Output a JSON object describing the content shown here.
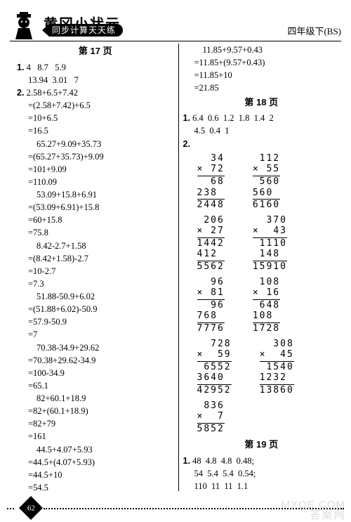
{
  "header": {
    "brand": "黄冈小状元",
    "subtitle": "同步计算天天练",
    "grade": "四年级下(BS)"
  },
  "footer": {
    "page_number": "62"
  },
  "watermark": {
    "en": "MXQE.COM",
    "cn": "答案网"
  },
  "left": {
    "page_label": "第 17 页",
    "q1_label": "1.",
    "q1_line1": "4   8.7   5.9",
    "q1_line2": "13.94  3.01   7",
    "q2_label": "2.",
    "blocks": [
      {
        "head": "2.58+6.5+7.42",
        "lines": [
          "=(2.58+7.42)+6.5",
          "=10+6.5",
          "=16.5"
        ]
      },
      {
        "head": "65.27+9.09+35.73",
        "lines": [
          "=(65.27+35.73)+9.09",
          "=101+9.09",
          "=110.09"
        ]
      },
      {
        "head": "53.09+15.8+6.91",
        "lines": [
          "=(53.09+6.91)+15.8",
          "=60+15.8",
          "=75.8"
        ]
      },
      {
        "head": "8.42-2.7+1.58",
        "lines": [
          "=(8.42+1.58)-2.7",
          "=10-2.7",
          "=7.3"
        ]
      },
      {
        "head": "51.88-50.9+6.02",
        "lines": [
          "=(51.88+6.02)-50.9",
          "=57.9-50.9",
          "=7"
        ]
      },
      {
        "head": "70.38-34.9+29.62",
        "lines": [
          "=70.38+29.62-34.9",
          "=100-34.9",
          "=65.1"
        ]
      },
      {
        "head": "82+60.1+18.9",
        "lines": [
          "=82+(60.1+18.9)",
          "=82+79",
          "=161"
        ]
      },
      {
        "head": "44.5+4.07+5.93",
        "lines": [
          "=44.5+(4.07+5.93)",
          "=44.5+10",
          "=54.5"
        ]
      }
    ]
  },
  "right": {
    "top_block": {
      "head": "11.85+9.57+0.43",
      "lines": [
        "=11.85+(9.57+0.43)",
        "=11.85+10",
        "=21.85"
      ]
    },
    "p18": {
      "label": "第 18 页",
      "q1_label": "1.",
      "q1_line1": "6.4  0.6  1.2  1.8  1.4  2",
      "q1_line2": "4.5  0.4  1",
      "q2_label": "2."
    },
    "mults": [
      {
        "a": "34",
        "b": "72",
        "p1": "68",
        "p2": "238",
        "r": "2448"
      },
      {
        "a": "112",
        "b": "55",
        "p1": "560",
        "p2": "560",
        "r": "6160"
      },
      {
        "a": "206",
        "b": "27",
        "p1": "1442",
        "p2": "412",
        "r": "5562"
      },
      {
        "a": "370",
        "b": "43",
        "p1": "1110",
        "p2": "148",
        "r": "15910"
      },
      {
        "a": "96",
        "b": "81",
        "p1": "96",
        "p2": "768",
        "r": "7776"
      },
      {
        "a": "108",
        "b": "16",
        "p1": "648",
        "p2": "108",
        "r": "1728"
      },
      {
        "a": "728",
        "b": "59",
        "p1": "6552",
        "p2": "3640",
        "r": "42952"
      },
      {
        "a": "308",
        "b": "45",
        "p1": "1540",
        "p2": "1232",
        "r": "13860"
      },
      {
        "a": "836",
        "b": "7",
        "p1": "",
        "p2": "",
        "r": "5852"
      }
    ],
    "p19": {
      "label": "第 19 页",
      "q1_label": "1.",
      "q1_line1": "48  4.8  4.8  0.48;",
      "q1_line2": "54  5.4  5.4  0.54;",
      "q1_line3": "110  11  11  1.1"
    }
  }
}
